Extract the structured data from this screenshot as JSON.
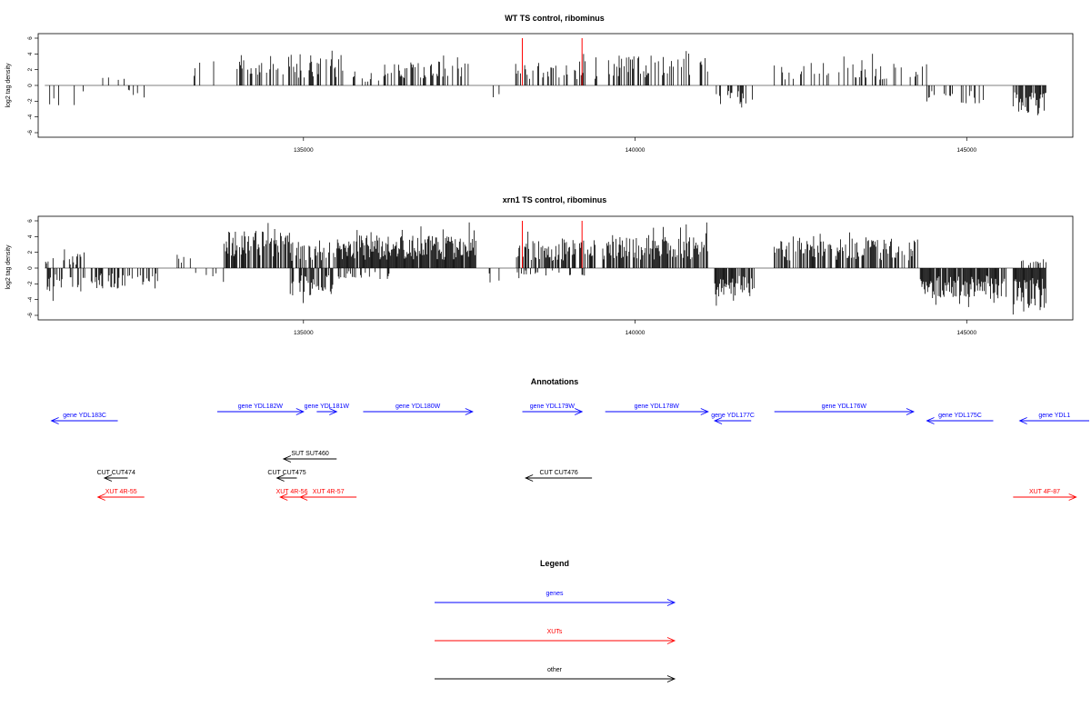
{
  "chart_data": [
    {
      "type": "bar",
      "title": "WT TS control, ribominus",
      "ylabel": "log2 tag density",
      "ylim": [
        -6,
        6
      ],
      "xlim": [
        131000,
        146600
      ],
      "x_ticks": [
        135000,
        140000,
        145000
      ],
      "y_ticks": [
        -6,
        -4,
        -2,
        0,
        2,
        4,
        6
      ],
      "grid": false,
      "highlight_positions": [
        138300,
        139200
      ],
      "highlight_color": "#ff0000",
      "bar_color": "#000000",
      "segments": [
        {
          "start": 131100,
          "end": 131800,
          "sign": -1,
          "amp": 2.2,
          "density": 0.1
        },
        {
          "start": 131800,
          "end": 132300,
          "sign": 1,
          "amp": 1.6,
          "density": 0.08
        },
        {
          "start": 132300,
          "end": 132600,
          "sign": -1,
          "amp": 1.0,
          "density": 0.08
        },
        {
          "start": 133350,
          "end": 133650,
          "sign": 1,
          "amp": 2.6,
          "density": 0.3
        },
        {
          "start": 133900,
          "end": 135600,
          "sign": 1,
          "amp": 3.3,
          "density": 0.35
        },
        {
          "start": 135600,
          "end": 136200,
          "sign": 1,
          "amp": 1.5,
          "density": 0.15
        },
        {
          "start": 136200,
          "end": 137500,
          "sign": 1,
          "amp": 2.6,
          "density": 0.4
        },
        {
          "start": 137850,
          "end": 137950,
          "sign": -1,
          "amp": 1.5,
          "density": 0.2
        },
        {
          "start": 138150,
          "end": 139500,
          "sign": 1,
          "amp": 2.6,
          "density": 0.25
        },
        {
          "start": 139550,
          "end": 141100,
          "sign": 1,
          "amp": 3.3,
          "density": 0.4
        },
        {
          "start": 141200,
          "end": 141800,
          "sign": -1,
          "amp": 2.0,
          "density": 0.2
        },
        {
          "start": 142100,
          "end": 144400,
          "sign": 1,
          "amp": 2.4,
          "density": 0.25
        },
        {
          "start": 144400,
          "end": 145300,
          "sign": -1,
          "amp": 2.0,
          "density": 0.25
        },
        {
          "start": 145700,
          "end": 146200,
          "sign": -1,
          "amp": 3.0,
          "density": 0.7
        }
      ]
    },
    {
      "type": "bar",
      "title": "xrn1 TS control, ribominus",
      "ylabel": "log2 tag density",
      "ylim": [
        -6,
        6
      ],
      "xlim": [
        131000,
        146600
      ],
      "x_ticks": [
        135000,
        140000,
        145000
      ],
      "y_ticks": [
        -6,
        -4,
        -2,
        0,
        2,
        4,
        6
      ],
      "grid": false,
      "highlight_positions": [
        138300,
        139200
      ],
      "highlight_color": "#ff0000",
      "bar_color": "#000000",
      "segments": [
        {
          "start": 131100,
          "end": 131700,
          "sign": 1,
          "amp": 1.5,
          "density": 0.3
        },
        {
          "start": 131100,
          "end": 131700,
          "sign": -1,
          "amp": 2.5,
          "density": 0.3
        },
        {
          "start": 131700,
          "end": 132800,
          "sign": -1,
          "amp": 2.2,
          "density": 0.45
        },
        {
          "start": 132800,
          "end": 133300,
          "sign": 1,
          "amp": 1.5,
          "density": 0.15
        },
        {
          "start": 133300,
          "end": 133800,
          "sign": -1,
          "amp": 1.5,
          "density": 0.15
        },
        {
          "start": 133800,
          "end": 134800,
          "sign": 1,
          "amp": 4.0,
          "density": 0.8
        },
        {
          "start": 134800,
          "end": 135500,
          "sign": -1,
          "amp": 3.0,
          "density": 0.5
        },
        {
          "start": 134800,
          "end": 135500,
          "sign": 1,
          "amp": 3.0,
          "density": 0.5
        },
        {
          "start": 135500,
          "end": 137600,
          "sign": 1,
          "amp": 3.5,
          "density": 0.95
        },
        {
          "start": 135500,
          "end": 136400,
          "sign": -1,
          "amp": 1.2,
          "density": 0.25
        },
        {
          "start": 137800,
          "end": 137950,
          "sign": -1,
          "amp": 2.0,
          "density": 0.3
        },
        {
          "start": 138200,
          "end": 139400,
          "sign": 1,
          "amp": 3.0,
          "density": 0.7
        },
        {
          "start": 138200,
          "end": 139400,
          "sign": -1,
          "amp": 0.8,
          "density": 0.2
        },
        {
          "start": 139500,
          "end": 141100,
          "sign": 1,
          "amp": 3.5,
          "density": 0.75
        },
        {
          "start": 141200,
          "end": 141800,
          "sign": -1,
          "amp": 3.0,
          "density": 0.85
        },
        {
          "start": 142100,
          "end": 144300,
          "sign": 1,
          "amp": 3.2,
          "density": 0.6
        },
        {
          "start": 144300,
          "end": 145600,
          "sign": -1,
          "amp": 3.2,
          "density": 0.85
        },
        {
          "start": 145700,
          "end": 146200,
          "sign": -1,
          "amp": 4.2,
          "density": 1.0
        },
        {
          "start": 145800,
          "end": 146200,
          "sign": 1,
          "amp": 1.2,
          "density": 0.3
        }
      ]
    }
  ],
  "annotations": {
    "title": "Annotations",
    "features": [
      {
        "label": "gene YDL183C",
        "type": "genes",
        "strand": "-",
        "start": 131200,
        "end": 132200,
        "row": 1
      },
      {
        "label": "gene YDL182W",
        "type": "genes",
        "strand": "+",
        "start": 133700,
        "end": 135000,
        "row": 0
      },
      {
        "label": "gene YDL181W",
        "type": "genes",
        "strand": "+",
        "start": 135200,
        "end": 135500,
        "row": 0
      },
      {
        "label": "gene YDL180W",
        "type": "genes",
        "strand": "+",
        "start": 135900,
        "end": 137550,
        "row": 0
      },
      {
        "label": "gene YDL179W",
        "type": "genes",
        "strand": "+",
        "start": 138300,
        "end": 139200,
        "row": 0
      },
      {
        "label": "gene YDL178W",
        "type": "genes",
        "strand": "+",
        "start": 139550,
        "end": 141100,
        "row": 0
      },
      {
        "label": "gene YDL177C",
        "type": "genes",
        "strand": "-",
        "start": 141200,
        "end": 141750,
        "row": 1
      },
      {
        "label": "gene YDL176W",
        "type": "genes",
        "strand": "+",
        "start": 142100,
        "end": 144200,
        "row": 0
      },
      {
        "label": "gene YDL175C",
        "type": "genes",
        "strand": "-",
        "start": 144400,
        "end": 145400,
        "row": 1
      },
      {
        "label": "gene YDL1",
        "type": "genes",
        "strand": "-",
        "start": 145800,
        "end": 147000,
        "row": 1
      },
      {
        "label": "SUT SUT460",
        "type": "other",
        "strand": "-",
        "start": 134700,
        "end": 135500,
        "row": 2
      },
      {
        "label": "CUT CUT474",
        "type": "other",
        "strand": "-",
        "start": 132000,
        "end": 132350,
        "row": 3
      },
      {
        "label": "CUT CUT475",
        "type": "other",
        "strand": "-",
        "start": 134600,
        "end": 134900,
        "row": 3
      },
      {
        "label": "CUT CUT476",
        "type": "other",
        "strand": "-",
        "start": 138350,
        "end": 139350,
        "row": 3
      },
      {
        "label": "XUT 4R-55",
        "type": "XUTs",
        "strand": "-",
        "start": 131900,
        "end": 132600,
        "row": 4
      },
      {
        "label": "XUT 4R-56",
        "type": "XUTs",
        "strand": "-",
        "start": 134650,
        "end": 135000,
        "row": 4
      },
      {
        "label": "XUT 4R-57",
        "type": "XUTs",
        "strand": "-",
        "start": 134950,
        "end": 135800,
        "row": 4
      },
      {
        "label": "XUT 4F-87",
        "type": "XUTs",
        "strand": "+",
        "start": 145700,
        "end": 146650,
        "row": 4
      }
    ]
  },
  "legend": {
    "title": "Legend",
    "entries": [
      {
        "label": "genes",
        "color": "#0000ff"
      },
      {
        "label": "XUTs",
        "color": "#ff0000"
      },
      {
        "label": "other",
        "color": "#000000"
      }
    ]
  },
  "colors": {
    "genes": "#0000ff",
    "XUTs": "#ff0000",
    "other": "#000000"
  }
}
